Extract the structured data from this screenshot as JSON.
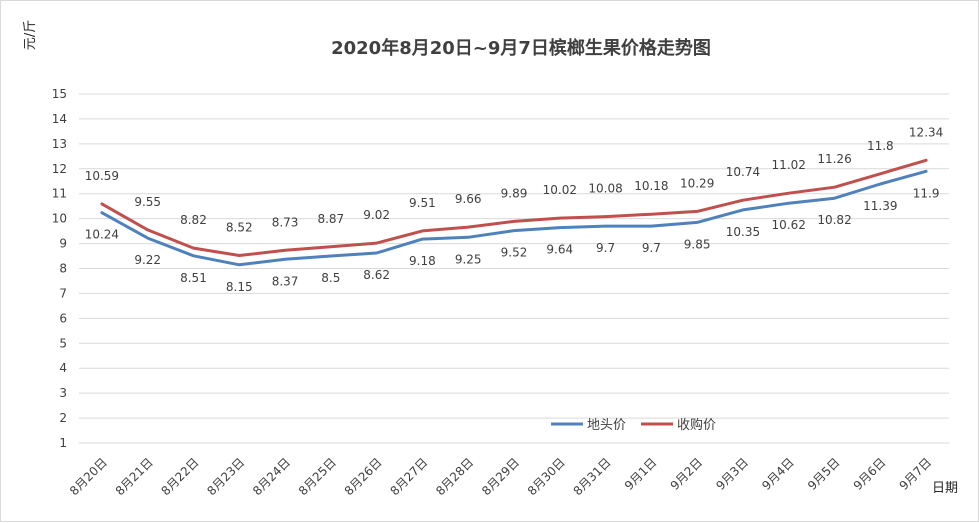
{
  "chart_data": {
    "type": "line",
    "title": "2020年8月20日~9月7日槟榔生果价格走势图",
    "ylabel": "元/斤",
    "xlabel": "日期",
    "ylim": [
      1,
      15
    ],
    "yticks": [
      1,
      2,
      3,
      4,
      5,
      6,
      7,
      8,
      9,
      10,
      11,
      12,
      13,
      14,
      15
    ],
    "grid": true,
    "legend_position": "bottom-right",
    "categories": [
      "8月20日",
      "8月21日",
      "8月22日",
      "8月23日",
      "8月24日",
      "8月25日",
      "8月26日",
      "8月27日",
      "8月28日",
      "8月29日",
      "8月30日",
      "8月31日",
      "9月1日",
      "9月2日",
      "9月3日",
      "9月4日",
      "9月5日",
      "9月6日",
      "9月7日"
    ],
    "series": [
      {
        "name": "地头价",
        "color": "#4f81bd",
        "label_position": "below",
        "values": [
          10.24,
          9.22,
          8.51,
          8.15,
          8.37,
          8.5,
          8.62,
          9.18,
          9.25,
          9.52,
          9.64,
          9.7,
          9.7,
          9.85,
          10.35,
          10.62,
          10.82,
          11.39,
          11.9
        ]
      },
      {
        "name": "收购价",
        "color": "#c0504d",
        "label_position": "above",
        "values": [
          10.59,
          9.55,
          8.82,
          8.52,
          8.73,
          8.87,
          9.02,
          9.51,
          9.66,
          9.89,
          10.02,
          10.08,
          10.18,
          10.29,
          10.74,
          11.02,
          11.26,
          11.8,
          12.34
        ]
      }
    ]
  }
}
